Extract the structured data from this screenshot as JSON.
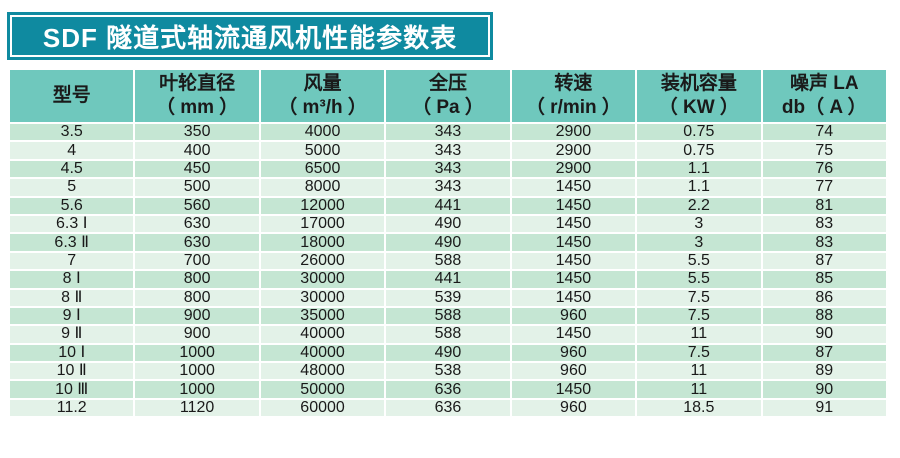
{
  "title": "SDF 隧道式轴流通风机性能参数表",
  "colors": {
    "title_bg": "#0f8aa0",
    "header_bg": "#6fc8bd",
    "row_dark": "#c5e6d3",
    "row_light": "#e3f2e8"
  },
  "headers": [
    {
      "line1": "型号",
      "line2": ""
    },
    {
      "line1": "叶轮直径",
      "line2": "（ mm ）"
    },
    {
      "line1": "风量",
      "line2": "（ m³/h ）"
    },
    {
      "line1": "全压",
      "line2": "（ Pa ）"
    },
    {
      "line1": "转速",
      "line2": "（ r/min ）"
    },
    {
      "line1": "装机容量",
      "line2": "（ KW ）"
    },
    {
      "line1": "噪声 LA",
      "line2": "db（ A ）"
    }
  ],
  "rows": [
    [
      "3.5",
      "350",
      "4000",
      "343",
      "2900",
      "0.75",
      "74"
    ],
    [
      "4",
      "400",
      "5000",
      "343",
      "2900",
      "0.75",
      "75"
    ],
    [
      "4.5",
      "450",
      "6500",
      "343",
      "2900",
      "1.1",
      "76"
    ],
    [
      "5",
      "500",
      "8000",
      "343",
      "1450",
      "1.1",
      "77"
    ],
    [
      "5.6",
      "560",
      "12000",
      "441",
      "1450",
      "2.2",
      "81"
    ],
    [
      "6.3 Ⅰ",
      "630",
      "17000",
      "490",
      "1450",
      "3",
      "83"
    ],
    [
      "6.3 Ⅱ",
      "630",
      "18000",
      "490",
      "1450",
      "3",
      "83"
    ],
    [
      "7",
      "700",
      "26000",
      "588",
      "1450",
      "5.5",
      "87"
    ],
    [
      "8 Ⅰ",
      "800",
      "30000",
      "441",
      "1450",
      "5.5",
      "85"
    ],
    [
      "8 Ⅱ",
      "800",
      "30000",
      "539",
      "1450",
      "7.5",
      "86"
    ],
    [
      "9 Ⅰ",
      "900",
      "35000",
      "588",
      "960",
      "7.5",
      "88"
    ],
    [
      "9 Ⅱ",
      "900",
      "40000",
      "588",
      "1450",
      "11",
      "90"
    ],
    [
      "10 Ⅰ",
      "1000",
      "40000",
      "490",
      "960",
      "7.5",
      "87"
    ],
    [
      "10 Ⅱ",
      "1000",
      "48000",
      "538",
      "960",
      "11",
      "89"
    ],
    [
      "10 Ⅲ",
      "1000",
      "50000",
      "636",
      "1450",
      "11",
      "90"
    ],
    [
      "11.2",
      "1120",
      "60000",
      "636",
      "960",
      "18.5",
      "91"
    ]
  ]
}
